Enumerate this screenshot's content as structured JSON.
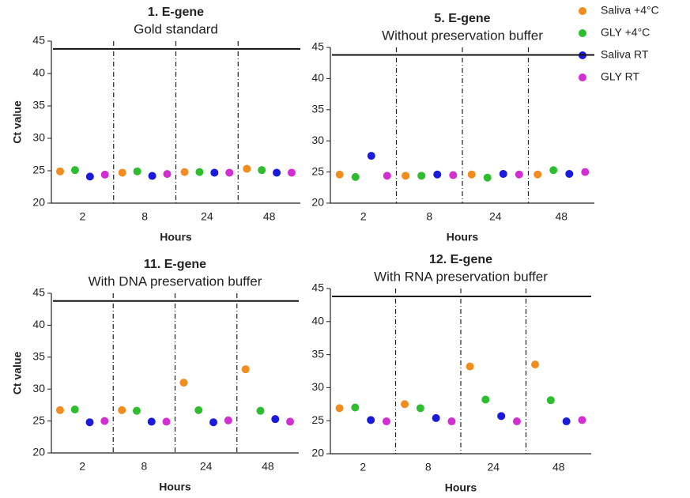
{
  "chart_data": [
    {
      "type": "dot",
      "title": "1. E-gene",
      "subtitle": "Gold standard",
      "xlabel": "Hours",
      "ylabel": "Ct value",
      "categories": [
        "2",
        "8",
        "24",
        "48"
      ],
      "ylim": [
        20,
        45
      ],
      "yticks": [
        20,
        25,
        30,
        35,
        40,
        45
      ],
      "threshold": 43.8,
      "series": [
        {
          "name": "Saliva +4°C",
          "color": "#f28c1e",
          "values": [
            24.9,
            24.7,
            24.8,
            25.3
          ]
        },
        {
          "name": "GLY +4°C",
          "color": "#2ebd2e",
          "values": [
            25.1,
            24.9,
            24.8,
            25.1
          ]
        },
        {
          "name": "Saliva RT",
          "color": "#1a1adc",
          "values": [
            24.1,
            24.2,
            24.7,
            24.7
          ]
        },
        {
          "name": "GLY RT",
          "color": "#d22ed2",
          "values": [
            24.4,
            24.5,
            24.7,
            24.7
          ]
        }
      ]
    },
    {
      "type": "dot",
      "title": "5. E-gene",
      "subtitle": "Without preservation buffer",
      "xlabel": "Hours",
      "categories": [
        "2",
        "8",
        "24",
        "48"
      ],
      "ylim": [
        20,
        45
      ],
      "yticks": [
        20,
        25,
        30,
        35,
        40,
        45
      ],
      "threshold": 43.8,
      "series": [
        {
          "values": [
            24.6,
            24.4,
            24.6,
            24.6
          ]
        },
        {
          "values": [
            24.2,
            24.4,
            24.1,
            25.3
          ]
        },
        {
          "values": [
            27.6,
            24.6,
            24.7,
            24.7
          ]
        },
        {
          "values": [
            24.4,
            24.5,
            24.6,
            25.0
          ]
        }
      ]
    },
    {
      "type": "dot",
      "title": "11. E-gene",
      "subtitle": "With DNA preservation buffer",
      "xlabel": "Hours",
      "ylabel": "Ct value",
      "categories": [
        "2",
        "8",
        "24",
        "48"
      ],
      "ylim": [
        20,
        45
      ],
      "yticks": [
        20,
        25,
        30,
        35,
        40,
        45
      ],
      "threshold": 43.8,
      "series": [
        {
          "values": [
            26.7,
            26.7,
            31.0,
            33.1
          ]
        },
        {
          "values": [
            26.8,
            26.6,
            26.7,
            26.6
          ]
        },
        {
          "values": [
            24.8,
            24.9,
            24.8,
            25.3
          ]
        },
        {
          "values": [
            25.0,
            24.9,
            25.1,
            24.9
          ]
        }
      ]
    },
    {
      "type": "dot",
      "title": "12. E-gene",
      "subtitle": "With RNA preservation buffer",
      "xlabel": "Hours",
      "categories": [
        "2",
        "8",
        "24",
        "48"
      ],
      "ylim": [
        20,
        45
      ],
      "yticks": [
        20,
        25,
        30,
        35,
        40,
        45
      ],
      "threshold": 43.8,
      "series": [
        {
          "values": [
            26.9,
            27.5,
            33.2,
            33.5
          ]
        },
        {
          "values": [
            27.0,
            26.9,
            28.2,
            28.1
          ]
        },
        {
          "values": [
            25.1,
            25.4,
            25.7,
            24.9
          ]
        },
        {
          "values": [
            24.9,
            24.9,
            24.9,
            25.1
          ]
        }
      ]
    }
  ]
}
